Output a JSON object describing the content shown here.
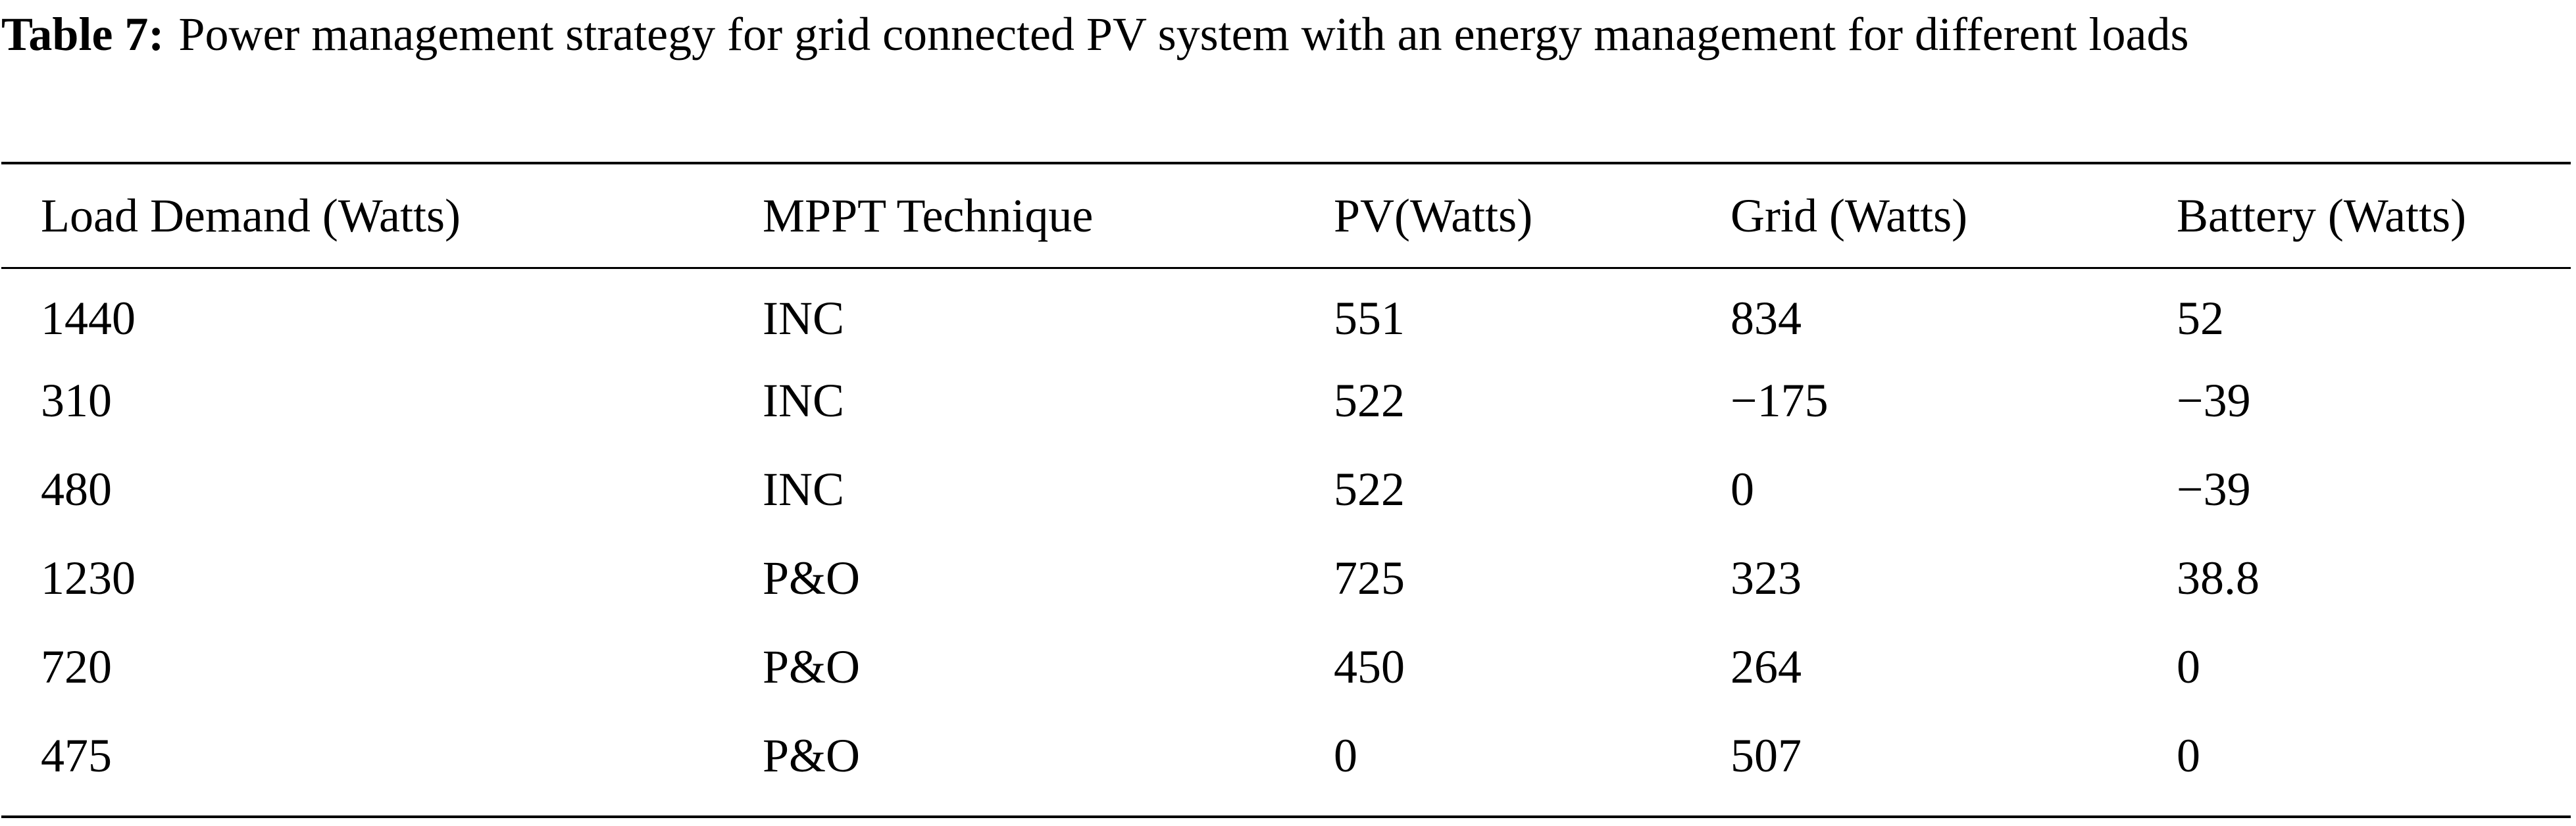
{
  "caption": {
    "label": "Table 7:",
    "text": "Power management strategy for grid connected PV system with an energy management for different loads"
  },
  "table": {
    "headers": [
      "Load Demand (Watts)",
      "MPPT Technique",
      "PV(Watts)",
      "Grid (Watts)",
      "Battery (Watts)"
    ],
    "rows": [
      [
        "1440",
        "INC",
        "551",
        "834",
        "52"
      ],
      [
        "310",
        "INC",
        "522",
        "−175",
        "−39"
      ],
      [
        "480",
        "INC",
        "522",
        "0",
        "−39"
      ],
      [
        "1230",
        "P&O",
        "725",
        "323",
        "38.8"
      ],
      [
        "720",
        "P&O",
        "450",
        "264",
        "0"
      ],
      [
        "475",
        "P&O",
        "0",
        "507",
        "0"
      ]
    ]
  }
}
